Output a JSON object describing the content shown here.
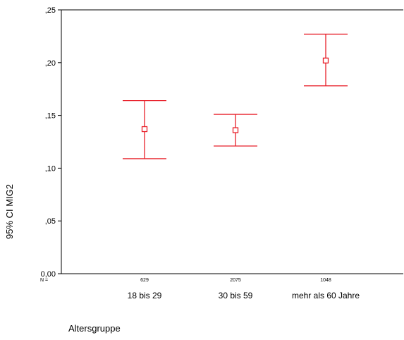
{
  "chart_data": {
    "type": "errorbar",
    "xlabel": "Altersgruppe",
    "ylabel": "95% CI MIG2",
    "ylim": [
      0,
      0.25
    ],
    "yticks": [
      0,
      0.05,
      0.1,
      0.15,
      0.2,
      0.25
    ],
    "ytick_labels": [
      "0,00",
      ",05",
      ",10",
      ",15",
      ",20",
      ",25"
    ],
    "n_label": "N =",
    "categories": [
      "18 bis 29",
      "30 bis 59",
      "mehr als 60 Jahre"
    ],
    "n": [
      "629",
      "2075",
      "1048"
    ],
    "means": [
      0.137,
      0.136,
      0.202
    ],
    "lower": [
      0.109,
      0.121,
      0.178
    ],
    "upper": [
      0.164,
      0.151,
      0.227
    ],
    "grid": false,
    "colors": {
      "series": "#e8202a",
      "axis": "#000000"
    }
  }
}
